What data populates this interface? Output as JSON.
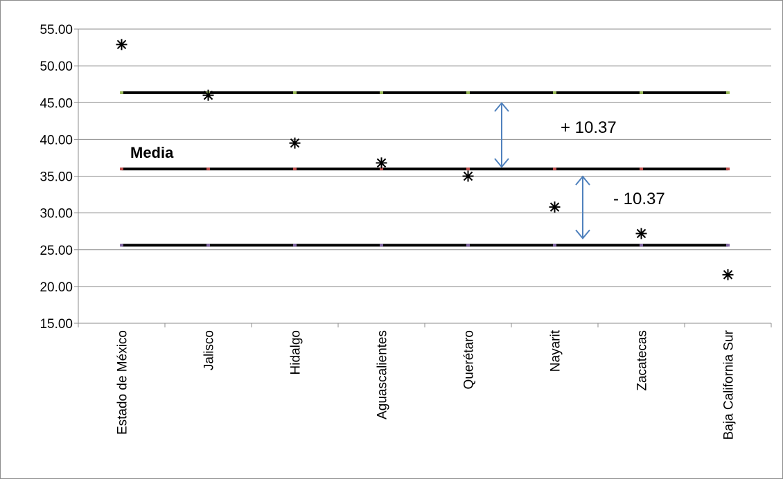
{
  "chart_data": {
    "type": "scatter",
    "title": "",
    "xlabel": "",
    "ylabel": "",
    "ylim": [
      15,
      55
    ],
    "yticks": [
      "15.00",
      "20.00",
      "25.00",
      "30.00",
      "35.00",
      "40.00",
      "45.00",
      "50.00",
      "55.00"
    ],
    "grid": true,
    "categories": [
      "Estado de México",
      "Jalisco",
      "Hidalgo",
      "Aguascalientes",
      "Querétaro",
      "Nayarit",
      "Zacatecas",
      "Baja California Sur"
    ],
    "values": [
      52.9,
      46.0,
      39.5,
      36.8,
      35.0,
      30.8,
      27.2,
      21.6
    ],
    "marker": "asterisk",
    "marker_color": "#000000",
    "reference_lines": [
      {
        "value": 46.35,
        "color": "#000000",
        "dot_color": "#9bbb59"
      },
      {
        "value": 35.98,
        "color": "#000000",
        "dot_color": "#c0504d"
      },
      {
        "value": 25.61,
        "color": "#000000",
        "dot_color": "#8064a2"
      }
    ],
    "annotations": {
      "media_label": "Media",
      "upper_label": "+ 10.37",
      "lower_label": "- 10.37",
      "arrow_color": "#4f81bd"
    }
  }
}
